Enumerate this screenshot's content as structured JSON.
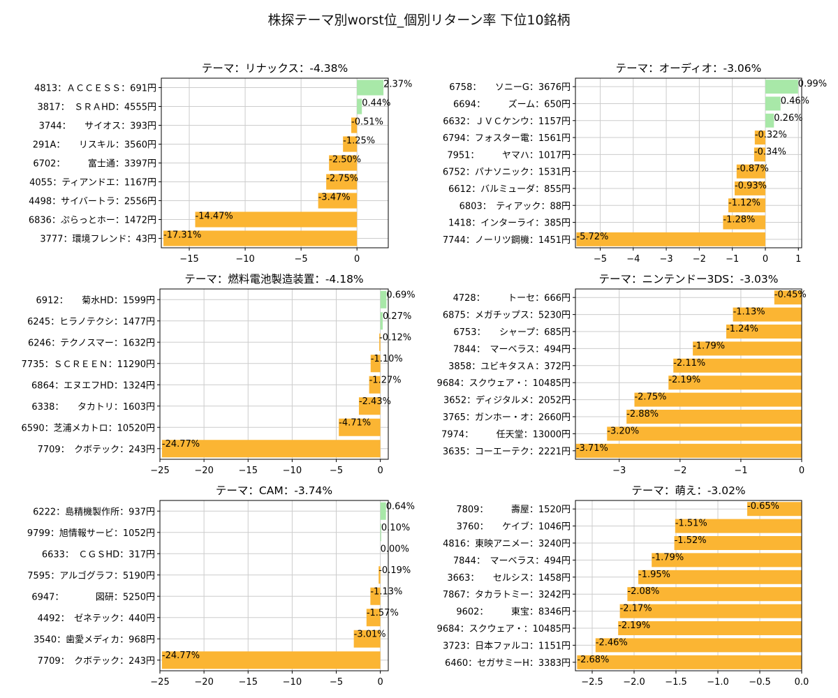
{
  "title": "株探テーマ別worst位_個別リターン率 下位10銘柄",
  "colors": {
    "positive": "#a8e8a8",
    "negative": "#fbb533",
    "grid": "#cccccc",
    "axis": "#000000"
  },
  "chart_data": [
    {
      "type": "bar",
      "orientation": "horizontal",
      "title": "テーマ：リナックス：-4.38%",
      "categories": [
        "4813：ＡＣＣＥＳＳ：691円",
        "3817：　ＳＲＡHD：4555円",
        "3744：　　サイオス：393円",
        "291A：　　リスキル：3560円",
        "6702：　　　富士通：3397円",
        "4055：ティアンドエ：1167円",
        "4498：サイバートラ：2556円",
        "6836：ぷらっとホー：1472円",
        "3777：環境フレンド：43円"
      ],
      "values": [
        2.37,
        0.44,
        -0.51,
        -1.25,
        -2.5,
        -2.75,
        -3.47,
        -14.47,
        -17.31
      ],
      "value_labels": [
        "2.37%",
        "0.44%",
        "-0.51%",
        "-1.25%",
        "-2.50%",
        "-2.75%",
        "-3.47%",
        "-14.47%",
        "-17.31%"
      ],
      "xlim": [
        -17.5,
        2.8
      ],
      "xticks": [
        -15,
        -10,
        -5,
        0
      ],
      "xtick_labels": [
        "−15",
        "−10",
        "−5",
        "0"
      ],
      "grid": true
    },
    {
      "type": "bar",
      "orientation": "horizontal",
      "title": "テーマ：オーディオ：-3.06%",
      "categories": [
        "6758：　　ソニーG：3676円",
        "6694：　　　ズーム：650円",
        "6632：ＪＶＣケンウ：1157円",
        "6794：フォスター電：1561円",
        "7951：　　　ヤマハ：1017円",
        "6752：パナソニック：1531円",
        "6612：バルミューダ：855円",
        "6803：　ティアック：88円",
        "1418：インターライ：385円",
        "7744：ノーリツ鋼機：1451円"
      ],
      "values": [
        0.99,
        0.46,
        0.26,
        -0.32,
        -0.34,
        -0.87,
        -0.93,
        -1.12,
        -1.28,
        -5.72
      ],
      "value_labels": [
        "0.99%",
        "0.46%",
        "0.26%",
        "-0.32%",
        "-0.34%",
        "-0.87%",
        "-0.93%",
        "-1.12%",
        "-1.28%",
        "-5.72%"
      ],
      "xlim": [
        -5.75,
        1.1
      ],
      "xticks": [
        -5,
        -4,
        -3,
        -2,
        -1,
        0,
        1
      ],
      "xtick_labels": [
        "−5",
        "−4",
        "−3",
        "−2",
        "−1",
        "0",
        "1"
      ],
      "grid": true
    },
    {
      "type": "bar",
      "orientation": "horizontal",
      "title": "テーマ：燃料電池製造装置：-4.18%",
      "categories": [
        "6912：　　菊水HD：1599円",
        "6245：ヒラノテクシ：1477円",
        "6246：テクノスマー：1632円",
        "7735：ＳＣＲＥＥＮ：11290円",
        "6864：エヌエフHD：1324円",
        "6338：　　タカトリ：1603円",
        "6590：芝浦メカトロ：10520円",
        "7709：　クボテック：243円"
      ],
      "values": [
        0.69,
        0.27,
        -0.12,
        -1.1,
        -1.27,
        -2.43,
        -4.71,
        -24.77
      ],
      "value_labels": [
        "0.69%",
        "0.27%",
        "-0.12%",
        "-1.10%",
        "-1.27%",
        "-2.43%",
        "-4.71%",
        "-24.77%"
      ],
      "xlim": [
        -25.0,
        0.9
      ],
      "xticks": [
        -25,
        -20,
        -15,
        -10,
        -5,
        0
      ],
      "xtick_labels": [
        "−25",
        "−20",
        "−15",
        "−10",
        "−5",
        "0"
      ],
      "grid": true
    },
    {
      "type": "bar",
      "orientation": "horizontal",
      "title": "テーマ：ニンテンドー3DS：-3.03%",
      "categories": [
        "4728：　　　トーセ：666円",
        "6875：メガチップス：5230円",
        "6753：　　シャープ：685円",
        "7844：　マーベラス：494円",
        "3858：ユビキタスＡ：372円",
        "9684：スクウェア・：10485円",
        "3652：ディジタルメ：2052円",
        "3765：ガンホー・オ：2660円",
        "7974：　　　任天堂：13000円",
        "3635：コーエーテク：2221円"
      ],
      "values": [
        -0.45,
        -1.13,
        -1.24,
        -1.79,
        -2.11,
        -2.19,
        -2.75,
        -2.88,
        -3.2,
        -3.71
      ],
      "value_labels": [
        "-0.45%",
        "-1.13%",
        "-1.24%",
        "-1.79%",
        "-2.11%",
        "-2.19%",
        "-2.75%",
        "-2.88%",
        "-3.20%",
        "-3.71%"
      ],
      "xlim": [
        -3.72,
        0.0
      ],
      "xticks": [
        -3,
        -2,
        -1,
        0
      ],
      "xtick_labels": [
        "−3",
        "−2",
        "−1",
        "0"
      ],
      "grid": true
    },
    {
      "type": "bar",
      "orientation": "horizontal",
      "title": "テーマ：CAM：-3.74%",
      "categories": [
        "6222：島精機製作所：937円",
        "9799：旭情報サービ：1052円",
        "6633：　ＣＧＳHD：317円",
        "7595：アルゴグラフ：5190円",
        "6947：　　　　図研：5250円",
        "4492：　ゼネテック：440円",
        "3540：歯愛メディカ：968円",
        "7709：　クボテック：243円"
      ],
      "values": [
        0.64,
        0.1,
        0.0,
        -0.19,
        -1.13,
        -1.57,
        -3.01,
        -24.77
      ],
      "value_labels": [
        "0.64%",
        "0.10%",
        "0.00%",
        "-0.19%",
        "-1.13%",
        "-1.57%",
        "-3.01%",
        "-24.77%"
      ],
      "xlim": [
        -25.0,
        0.9
      ],
      "xticks": [
        -25,
        -20,
        -15,
        -10,
        -5,
        0
      ],
      "xtick_labels": [
        "−25",
        "−20",
        "−15",
        "−10",
        "−5",
        "0"
      ],
      "grid": true
    },
    {
      "type": "bar",
      "orientation": "horizontal",
      "title": "テーマ：萌え：-3.02%",
      "categories": [
        "7809：　　　壽屋：1520円",
        "3760：　　ケイブ：1046円",
        "4816：東映アニメー：3240円",
        "7844：　マーベラス：494円",
        "3663：　　セルシス：1458円",
        "7867：タカラトミー：3242円",
        "9602：　　　東宝：8346円",
        "9684：スクウェア・：10485円",
        "3723：日本ファルコ：1151円",
        "6460：セガサミーH：3383円"
      ],
      "values": [
        -0.65,
        -1.51,
        -1.52,
        -1.79,
        -1.95,
        -2.08,
        -2.17,
        -2.19,
        -2.46,
        -2.68
      ],
      "value_labels": [
        "-0.65%",
        "-1.51%",
        "-1.52%",
        "-1.79%",
        "-1.95%",
        "-2.08%",
        "-2.17%",
        "-2.19%",
        "-2.46%",
        "-2.68%"
      ],
      "xlim": [
        -2.7,
        0.0
      ],
      "xticks": [
        -2.5,
        -2.0,
        -1.5,
        -1.0,
        -0.5,
        0.0
      ],
      "xtick_labels": [
        "−2.5",
        "−2.0",
        "−1.5",
        "−1.0",
        "−0.5",
        "0.0"
      ],
      "grid": true
    }
  ]
}
